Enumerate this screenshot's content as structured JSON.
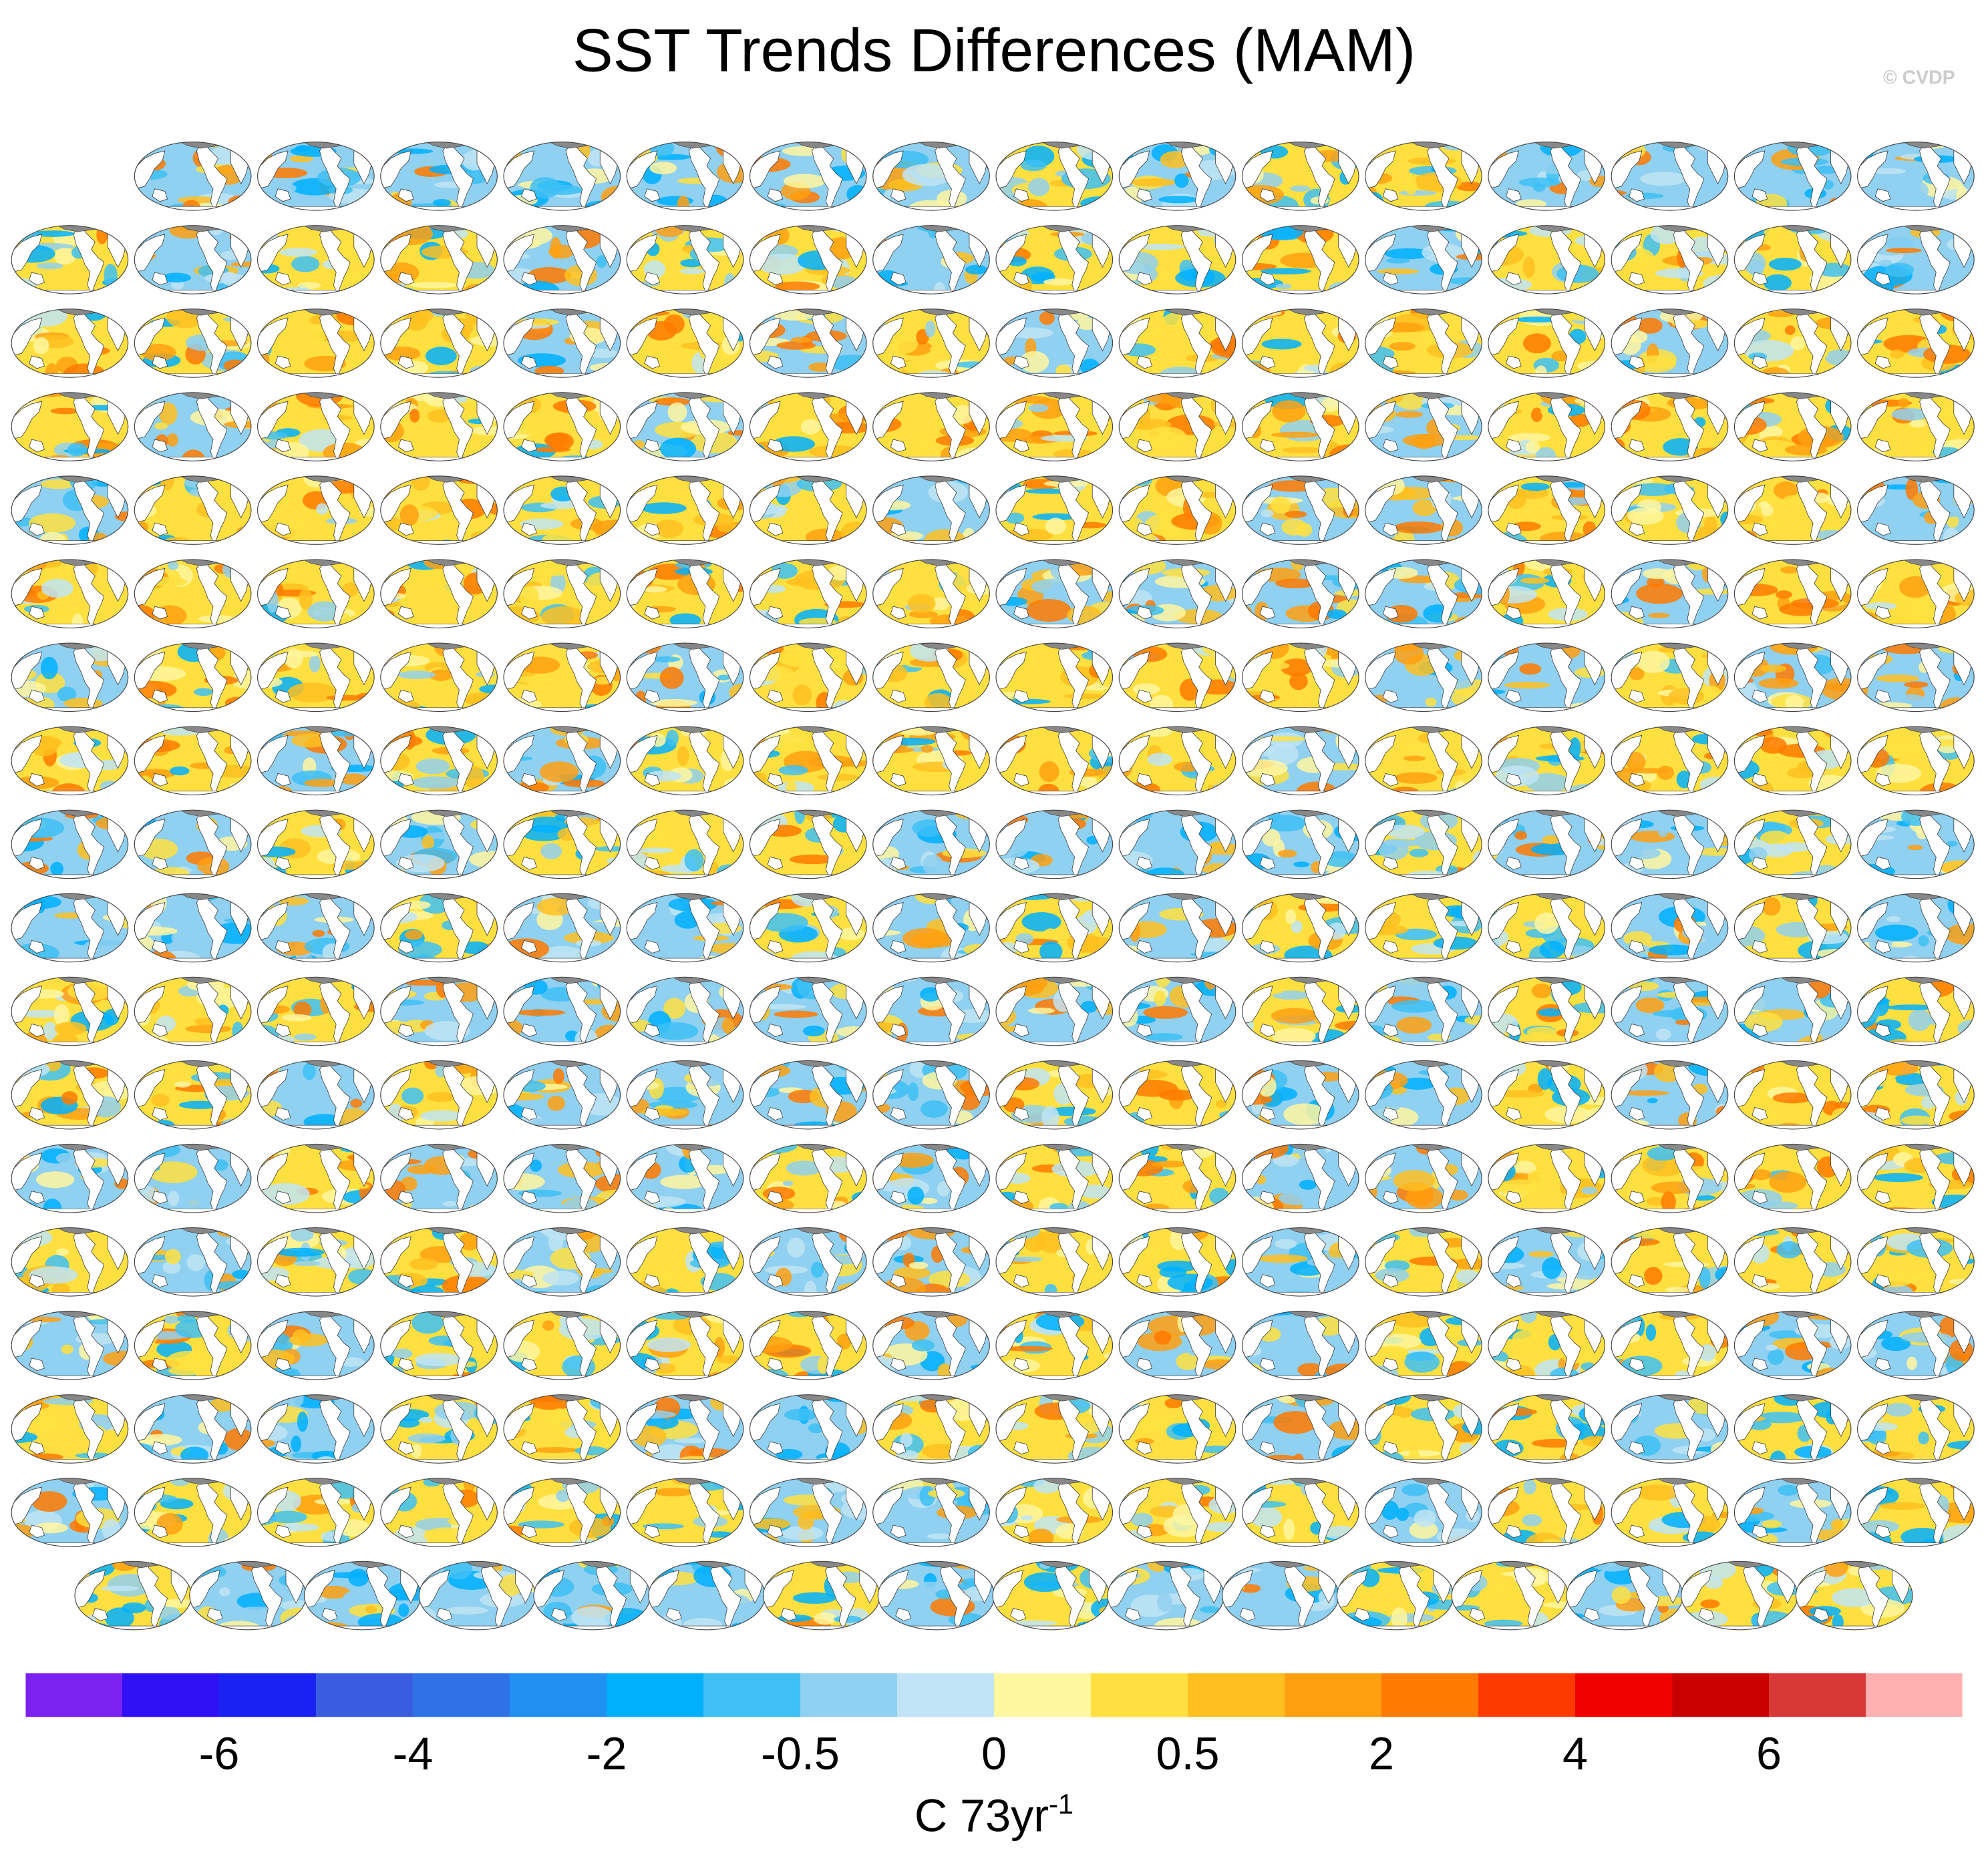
{
  "title": "SST Trends Differences (MAM)",
  "watermark": "© CVDP",
  "colorbar": {
    "colors": [
      "#7b22f0",
      "#2e10f5",
      "#1a22f2",
      "#3a5ce0",
      "#2f72e8",
      "#2090f5",
      "#00b0ff",
      "#3ec0f5",
      "#90d0f0",
      "#c0e4f5",
      "#fff6a0",
      "#ffe040",
      "#ffc020",
      "#ffa010",
      "#ff7a00",
      "#ff3a00",
      "#f00000",
      "#c80000",
      "#d83838",
      "#ffb0b0"
    ],
    "ticks": [
      -6,
      -4,
      -2,
      -0.5,
      0,
      0.5,
      2,
      4,
      6
    ],
    "label": "C 73yr",
    "label_superscript": "-1"
  }
}
